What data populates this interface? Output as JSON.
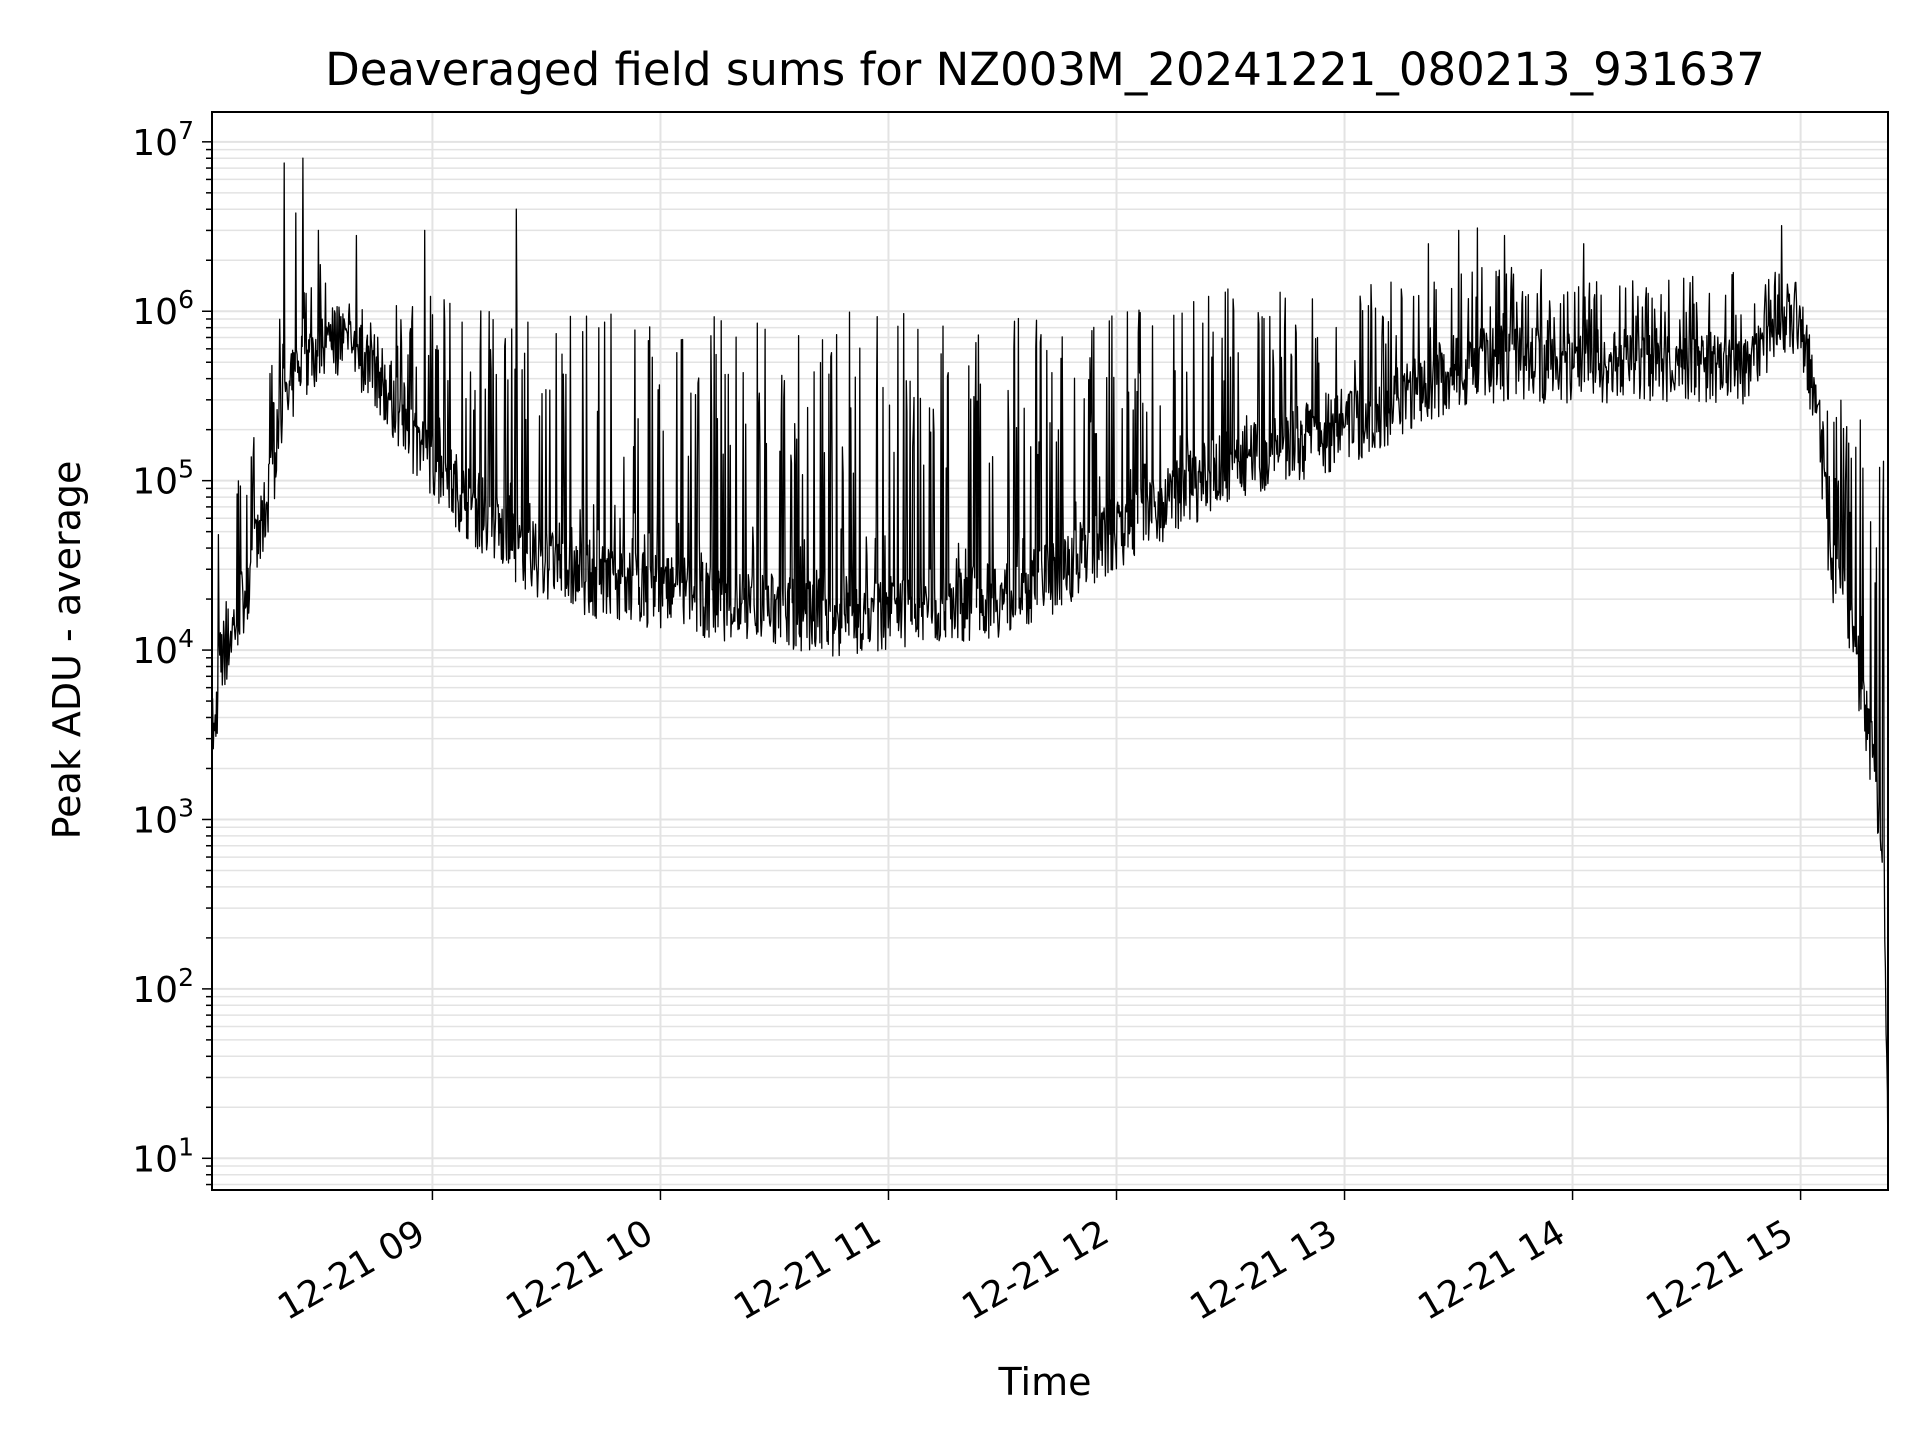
{
  "chart_data": {
    "type": "line",
    "title": "Deaveraged field sums for NZ003M_20241221_080213_931637",
    "xlabel": "Time",
    "ylabel": "Peak ADU - average",
    "yscale": "log",
    "ylim": [
      6.5,
      15000000
    ],
    "xlim": [
      "2024-12-21 08:02",
      "2024-12-21 15:23"
    ],
    "grid": true,
    "legend": "none",
    "line_color": "#000000",
    "x_ticks": [
      {
        "value": "2024-12-21 09:00",
        "label": "12-21 09"
      },
      {
        "value": "2024-12-21 10:00",
        "label": "12-21 10"
      },
      {
        "value": "2024-12-21 11:00",
        "label": "12-21 11"
      },
      {
        "value": "2024-12-21 12:00",
        "label": "12-21 12"
      },
      {
        "value": "2024-12-21 13:00",
        "label": "12-21 13"
      },
      {
        "value": "2024-12-21 14:00",
        "label": "12-21 14"
      },
      {
        "value": "2024-12-21 15:00",
        "label": "12-21 15"
      }
    ],
    "y_ticks": [
      {
        "value": 10,
        "base": "10",
        "exp": "1"
      },
      {
        "value": 100,
        "base": "10",
        "exp": "2"
      },
      {
        "value": 1000,
        "base": "10",
        "exp": "3"
      },
      {
        "value": 10000,
        "base": "10",
        "exp": "4"
      },
      {
        "value": 100000,
        "base": "10",
        "exp": "5"
      },
      {
        "value": 1000000,
        "base": "10",
        "exp": "6"
      },
      {
        "value": 10000000,
        "base": "10",
        "exp": "7"
      }
    ],
    "series": [
      {
        "baseline": [
          [
            "2024-12-21 08:02",
            2000
          ],
          [
            "2024-12-21 08:04",
            8000
          ],
          [
            "2024-12-21 08:10",
            20000
          ],
          [
            "2024-12-21 08:15",
            50000
          ],
          [
            "2024-12-21 08:20",
            200000
          ],
          [
            "2024-12-21 08:25",
            500000
          ],
          [
            "2024-12-21 08:35",
            700000
          ],
          [
            "2024-12-21 08:45",
            450000
          ],
          [
            "2024-12-21 08:55",
            180000
          ],
          [
            "2024-12-21 09:10",
            70000
          ],
          [
            "2024-12-21 09:25",
            35000
          ],
          [
            "2024-12-21 09:45",
            25000
          ],
          [
            "2024-12-21 10:10",
            20000
          ],
          [
            "2024-12-21 10:30",
            17000
          ],
          [
            "2024-12-21 10:50",
            15000
          ],
          [
            "2024-12-21 11:10",
            18000
          ],
          [
            "2024-12-21 11:30",
            20000
          ],
          [
            "2024-12-21 11:45",
            28000
          ],
          [
            "2024-12-21 12:00",
            50000
          ],
          [
            "2024-12-21 12:15",
            80000
          ],
          [
            "2024-12-21 12:30",
            120000
          ],
          [
            "2024-12-21 12:45",
            160000
          ],
          [
            "2024-12-21 13:00",
            200000
          ],
          [
            "2024-12-21 13:15",
            300000
          ],
          [
            "2024-12-21 13:30",
            450000
          ],
          [
            "2024-12-21 13:45",
            500000
          ],
          [
            "2024-12-21 14:00",
            450000
          ],
          [
            "2024-12-21 14:15",
            500000
          ],
          [
            "2024-12-21 14:30",
            450000
          ],
          [
            "2024-12-21 14:45",
            450000
          ],
          [
            "2024-12-21 14:55",
            900000
          ],
          [
            "2024-12-21 15:00",
            900000
          ],
          [
            "2024-12-21 15:05",
            200000
          ],
          [
            "2024-12-21 15:08",
            30000
          ],
          [
            "2024-12-21 15:12",
            20000
          ],
          [
            "2024-12-21 15:15",
            8000
          ],
          [
            "2024-12-21 15:18",
            3000
          ],
          [
            "2024-12-21 15:21",
            1000
          ],
          [
            "2024-12-21 15:22",
            400
          ],
          [
            "2024-12-21 15:23",
            10
          ]
        ],
        "upper_envelope": [
          [
            "2024-12-21 08:10",
            100000
          ],
          [
            "2024-12-21 08:20",
            1000000
          ],
          [
            "2024-12-21 08:30",
            2000000
          ],
          [
            "2024-12-21 08:40",
            1200000
          ],
          [
            "2024-12-21 09:00",
            1300000
          ],
          [
            "2024-12-21 09:30",
            1000000
          ],
          [
            "2024-12-21 10:00",
            1000000
          ],
          [
            "2024-12-21 10:30",
            1000000
          ],
          [
            "2024-12-21 11:00",
            1000000
          ],
          [
            "2024-12-21 11:30",
            900000
          ],
          [
            "2024-12-21 12:00",
            1000000
          ],
          [
            "2024-12-21 12:30",
            1400000
          ],
          [
            "2024-12-21 13:00",
            1300000
          ],
          [
            "2024-12-21 13:30",
            2000000
          ],
          [
            "2024-12-21 14:00",
            1800000
          ],
          [
            "2024-12-21 14:30",
            1600000
          ],
          [
            "2024-12-21 14:55",
            2000000
          ],
          [
            "2024-12-21 15:00",
            1500000
          ],
          [
            "2024-12-21 15:05",
            300000
          ]
        ],
        "peaks": [
          [
            "2024-12-21 08:21",
            7500000
          ],
          [
            "2024-12-21 08:26",
            8000000
          ],
          [
            "2024-12-21 08:24",
            3800000
          ],
          [
            "2024-12-21 08:30",
            3000000
          ],
          [
            "2024-12-21 08:40",
            2800000
          ],
          [
            "2024-12-21 08:58",
            3000000
          ],
          [
            "2024-12-21 09:22",
            4000000
          ],
          [
            "2024-12-21 13:22",
            2500000
          ],
          [
            "2024-12-21 13:30",
            3000000
          ],
          [
            "2024-12-21 13:35",
            3100000
          ],
          [
            "2024-12-21 13:42",
            2800000
          ],
          [
            "2024-12-21 14:03",
            2500000
          ],
          [
            "2024-12-21 14:55",
            3200000
          ],
          [
            "2024-12-21 15:13",
            65000
          ]
        ]
      }
    ]
  }
}
